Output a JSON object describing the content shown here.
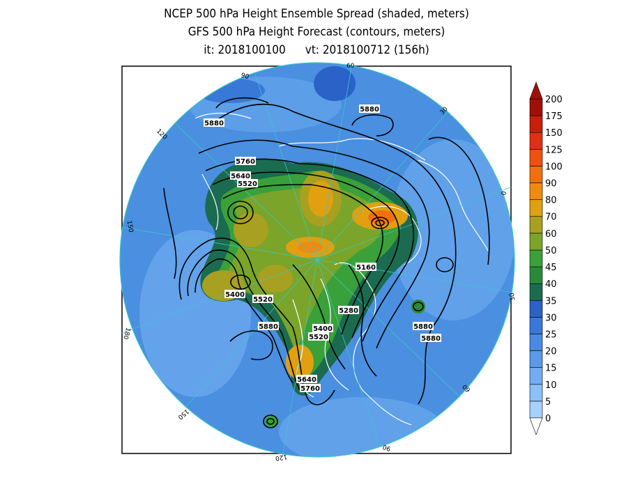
{
  "title": {
    "line1": "NCEP 500 hPa Height Ensemble Spread (shaded, meters)",
    "line2": "GFS 500 hPa Height Forecast (contours, meters)",
    "init": "it: 2018100100",
    "valid": "vt: 2018100712 (156h)"
  },
  "colors": {
    "ocean": "#4a8fe0",
    "ring": "#3ac7c7",
    "contour": "#000000",
    "coast": "#ffffff"
  },
  "colorbar": {
    "levels": [
      "0",
      "5",
      "10",
      "15",
      "20",
      "25",
      "30",
      "35",
      "40",
      "45",
      "50",
      "60",
      "70",
      "80",
      "90",
      "100",
      "125",
      "150",
      "175",
      "200"
    ],
    "colors": [
      "#a6d1ff",
      "#8cc0fa",
      "#72acf2",
      "#5b9ae8",
      "#4a8ae0",
      "#3a78d8",
      "#2a62c8",
      "#1b6b50",
      "#2a8a3a",
      "#3aa03a",
      "#7aa52a",
      "#a8a020",
      "#e0a010",
      "#f08a10",
      "#f07010",
      "#f05010",
      "#e03010",
      "#c81e0a",
      "#a01008"
    ]
  },
  "contour_labels": [
    {
      "id": "c5880-ne",
      "text": "5880"
    },
    {
      "id": "c5880-nw",
      "text": "5880"
    },
    {
      "id": "c5760-a",
      "text": "5760"
    },
    {
      "id": "c5640-a",
      "text": "5640"
    },
    {
      "id": "c5520-a",
      "text": "5520"
    },
    {
      "id": "c5160",
      "text": "5160"
    },
    {
      "id": "c5400-w",
      "text": "5400"
    },
    {
      "id": "c5520-w",
      "text": "5520"
    },
    {
      "id": "c5280",
      "text": "5280"
    },
    {
      "id": "c5880-w",
      "text": "5880"
    },
    {
      "id": "c5400-s",
      "text": "5400"
    },
    {
      "id": "c5520-s",
      "text": "5520"
    },
    {
      "id": "c5880-e1",
      "text": "5880"
    },
    {
      "id": "c5880-e2",
      "text": "5880"
    },
    {
      "id": "c5640-s",
      "text": "5640"
    },
    {
      "id": "c5760-s",
      "text": "5760"
    }
  ],
  "longitude_labels": [
    "60",
    "30",
    "0",
    "30",
    "60",
    "90",
    "120",
    "150",
    "180",
    "150",
    "120",
    "90"
  ]
}
